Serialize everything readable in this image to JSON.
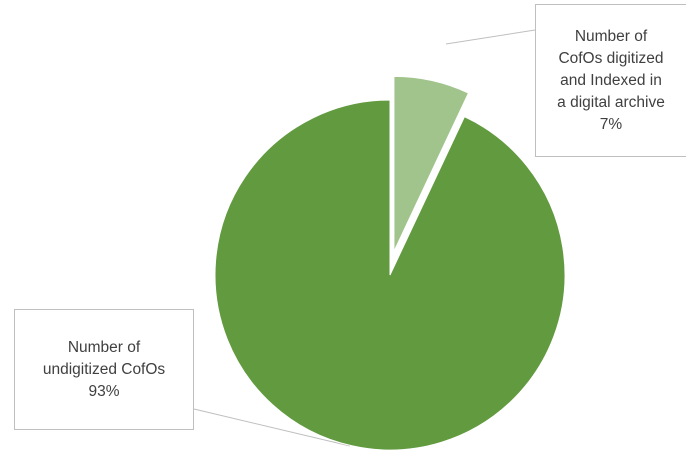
{
  "chart_data": {
    "type": "pie",
    "exploded": true,
    "slices": [
      {
        "label_lines": [
          "Number of",
          "undigitized CofOs"
        ],
        "percent_label": "93%",
        "value": 93,
        "color": "#629a3f"
      },
      {
        "label_lines": [
          "Number of",
          "CofOs digitized",
          "and Indexed in",
          "a digital archive"
        ],
        "percent_label": "7%",
        "value": 7,
        "color": "#a1c48d"
      }
    ],
    "legend": "none"
  }
}
